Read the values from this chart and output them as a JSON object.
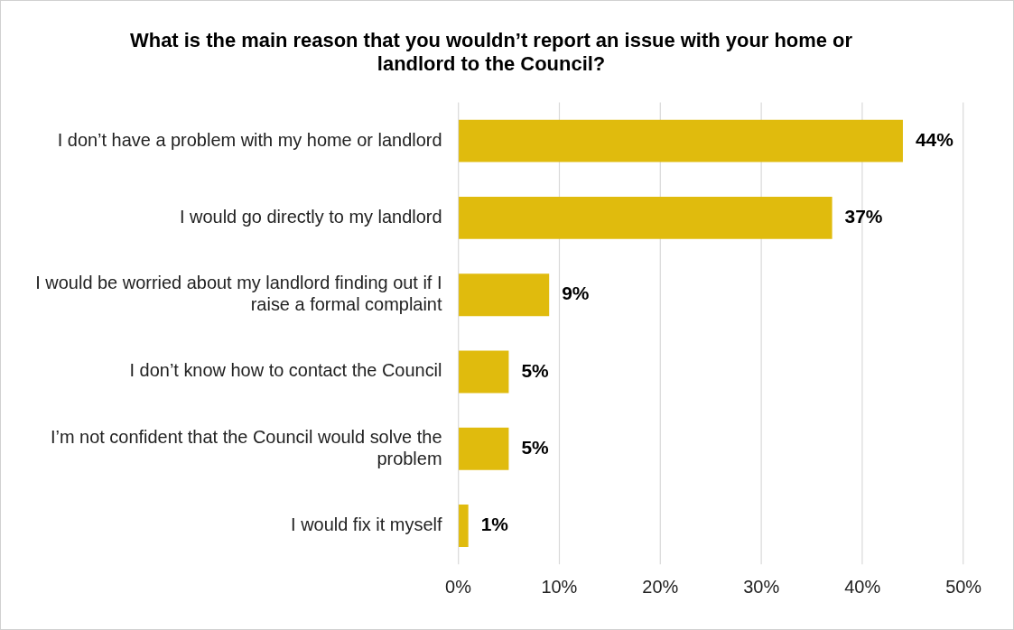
{
  "chart_data": {
    "type": "bar",
    "orientation": "horizontal",
    "title": "What is the main reason that you wouldn’t report an issue with your home or landlord to the Council?",
    "categories": [
      "I don’t have a problem with my home or landlord",
      "I would go directly to my landlord",
      "I would be worried about my landlord finding out if I raise a formal complaint",
      "I don’t know how to contact the Council",
      "I’m not confident that the Council would solve the problem",
      "I would fix it myself"
    ],
    "values": [
      44,
      37,
      9,
      5,
      5,
      1
    ],
    "value_labels": [
      "44%",
      "37%",
      "9%",
      "5%",
      "5%",
      "1%"
    ],
    "color": "#e0bb0d",
    "xlim": [
      0,
      50
    ],
    "xticks": [
      {
        "value": 0,
        "label": "0%"
      },
      {
        "value": 10,
        "label": "10%"
      },
      {
        "value": 20,
        "label": "20%"
      },
      {
        "value": 30,
        "label": "30%"
      },
      {
        "value": 40,
        "label": "40%"
      },
      {
        "value": 50,
        "label": "50%"
      }
    ],
    "grid": "x",
    "legend": false
  }
}
